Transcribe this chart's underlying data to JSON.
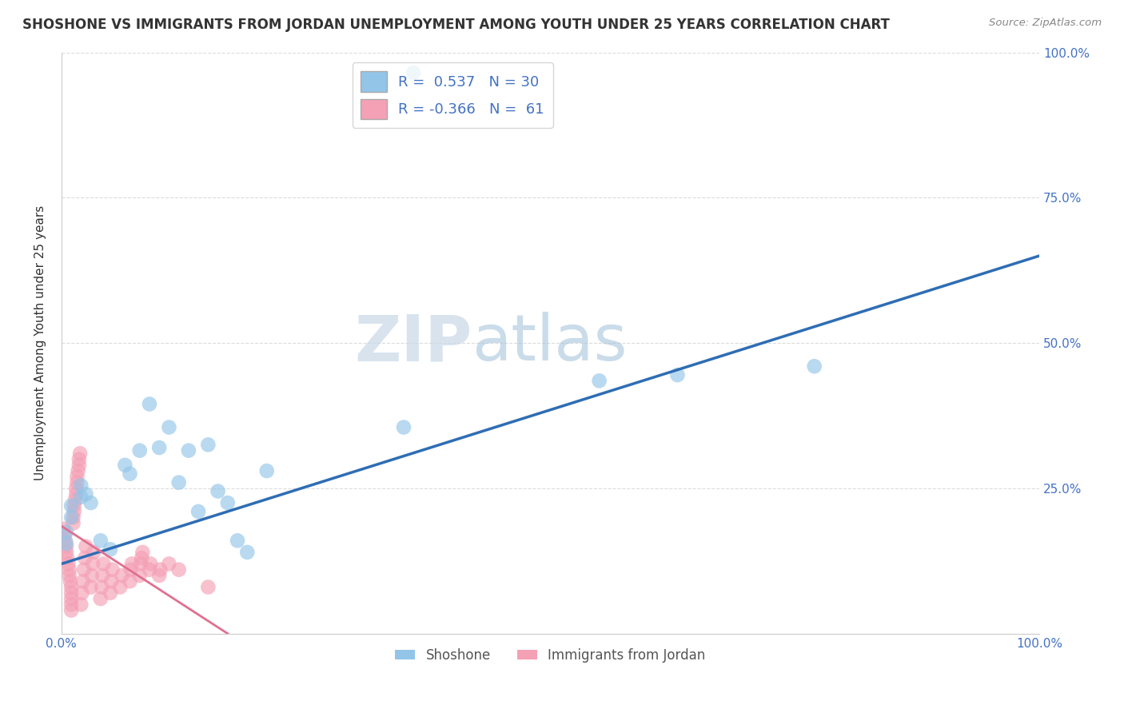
{
  "title": "SHOSHONE VS IMMIGRANTS FROM JORDAN UNEMPLOYMENT AMONG YOUTH UNDER 25 YEARS CORRELATION CHART",
  "source": "Source: ZipAtlas.com",
  "ylabel": "Unemployment Among Youth under 25 years",
  "xlim": [
    0.0,
    1.0
  ],
  "ylim": [
    0.0,
    1.0
  ],
  "xticks": [
    0.0,
    0.25,
    0.5,
    0.75,
    1.0
  ],
  "yticks": [
    0.0,
    0.25,
    0.5,
    0.75,
    1.0
  ],
  "xtick_labels": [
    "0.0%",
    "",
    "",
    "",
    "100.0%"
  ],
  "ytick_labels_right": [
    "",
    "25.0%",
    "50.0%",
    "75.0%",
    "100.0%"
  ],
  "blue_color": "#92C5E8",
  "pink_color": "#F4A0B5",
  "blue_line_color": "#2E6DB4",
  "pink_line_color": "#E07090",
  "R_blue": 0.537,
  "N_blue": 30,
  "R_pink": -0.366,
  "N_pink": 61,
  "legend_label_blue": "Shoshone",
  "legend_label_pink": "Immigrants from Jordan",
  "watermark_zip": "ZIP",
  "watermark_atlas": "atlas",
  "background_color": "#FFFFFF",
  "grid_color": "#CCCCCC",
  "blue_line_x0": 0.0,
  "blue_line_y0": 0.12,
  "blue_line_x1": 1.0,
  "blue_line_y1": 0.65,
  "pink_line_x0": 0.0,
  "pink_line_y0": 0.185,
  "pink_line_x1": 0.17,
  "pink_line_y1": 0.0,
  "blue_x": [
    0.005,
    0.005,
    0.01,
    0.01,
    0.02,
    0.02,
    0.025,
    0.03,
    0.04,
    0.05,
    0.065,
    0.07,
    0.08,
    0.09,
    0.1,
    0.11,
    0.12,
    0.13,
    0.14,
    0.15,
    0.16,
    0.17,
    0.18,
    0.19,
    0.21,
    0.35,
    0.55,
    0.63,
    0.77,
    0.36
  ],
  "blue_y": [
    0.155,
    0.175,
    0.2,
    0.22,
    0.235,
    0.255,
    0.24,
    0.225,
    0.16,
    0.145,
    0.29,
    0.275,
    0.315,
    0.395,
    0.32,
    0.355,
    0.26,
    0.315,
    0.21,
    0.325,
    0.245,
    0.225,
    0.16,
    0.14,
    0.28,
    0.355,
    0.435,
    0.445,
    0.46,
    0.965
  ],
  "pink_x": [
    0.002,
    0.003,
    0.004,
    0.005,
    0.005,
    0.006,
    0.007,
    0.008,
    0.008,
    0.009,
    0.01,
    0.01,
    0.01,
    0.01,
    0.01,
    0.012,
    0.012,
    0.013,
    0.013,
    0.014,
    0.015,
    0.015,
    0.016,
    0.016,
    0.017,
    0.018,
    0.018,
    0.019,
    0.02,
    0.021,
    0.022,
    0.023,
    0.024,
    0.025,
    0.03,
    0.031,
    0.032,
    0.033,
    0.04,
    0.041,
    0.042,
    0.043,
    0.05,
    0.051,
    0.052,
    0.06,
    0.062,
    0.07,
    0.071,
    0.072,
    0.08,
    0.081,
    0.082,
    0.083,
    0.09,
    0.091,
    0.1,
    0.101,
    0.11,
    0.12,
    0.15
  ],
  "pink_y": [
    0.18,
    0.17,
    0.16,
    0.15,
    0.14,
    0.13,
    0.12,
    0.11,
    0.1,
    0.09,
    0.08,
    0.07,
    0.06,
    0.05,
    0.04,
    0.19,
    0.2,
    0.21,
    0.22,
    0.23,
    0.24,
    0.25,
    0.26,
    0.27,
    0.28,
    0.29,
    0.3,
    0.31,
    0.05,
    0.07,
    0.09,
    0.11,
    0.13,
    0.15,
    0.08,
    0.1,
    0.12,
    0.14,
    0.06,
    0.08,
    0.1,
    0.12,
    0.07,
    0.09,
    0.11,
    0.08,
    0.1,
    0.09,
    0.11,
    0.12,
    0.1,
    0.12,
    0.13,
    0.14,
    0.11,
    0.12,
    0.1,
    0.11,
    0.12,
    0.11,
    0.08
  ]
}
